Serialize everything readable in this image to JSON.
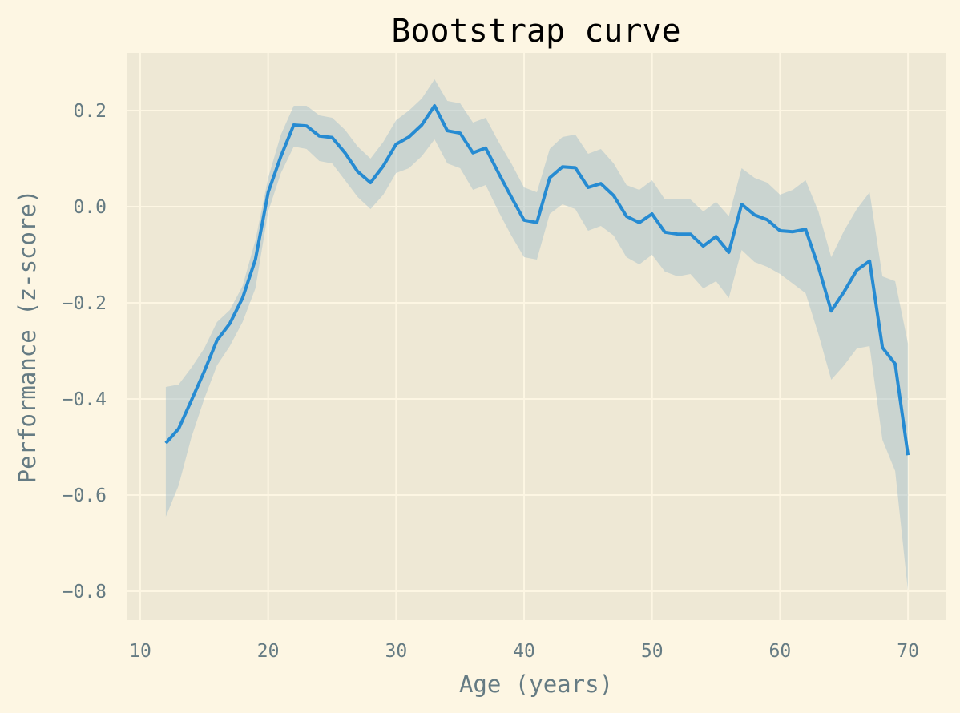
{
  "chart_data": {
    "type": "line",
    "title": "Bootstrap curve",
    "xlabel": "Age (years)",
    "ylabel": "Performance (z-score)",
    "xlim": [
      9,
      73
    ],
    "ylim": [
      -0.86,
      0.32
    ],
    "xticks": [
      10,
      20,
      30,
      40,
      50,
      60,
      70
    ],
    "yticks": [
      0.2,
      0.0,
      -0.2,
      -0.4,
      -0.6,
      -0.8
    ],
    "xtick_labels": [
      "10",
      "20",
      "30",
      "40",
      "50",
      "60",
      "70"
    ],
    "ytick_labels": [
      "0.2",
      "0.0",
      "−0.2",
      "−0.4",
      "−0.6",
      "−0.8"
    ],
    "grid": true,
    "colors": {
      "figure_bg": "#fdf6e3",
      "axes_bg": "#eee8d5",
      "grid": "#fdf6e3",
      "line": "#268bd2",
      "band": "#93b6c8",
      "title": "#000000",
      "labels": "#657b83"
    },
    "series": [
      {
        "x": [
          12,
          13,
          14,
          15,
          16,
          17,
          18,
          19,
          20,
          21,
          22,
          23,
          24,
          25,
          26,
          27,
          28,
          29,
          30,
          31,
          32,
          33,
          34,
          35,
          36,
          37,
          38,
          39,
          40,
          41,
          42,
          43,
          44,
          45,
          46,
          47,
          48,
          49,
          50,
          51,
          52,
          53,
          54,
          55,
          56,
          57,
          58,
          59,
          60,
          61,
          62,
          63,
          64,
          65,
          66,
          67,
          68,
          69,
          70
        ],
        "y": [
          -0.492,
          -0.462,
          -0.403,
          -0.343,
          -0.278,
          -0.243,
          -0.19,
          -0.11,
          0.03,
          0.105,
          0.17,
          0.168,
          0.147,
          0.144,
          0.112,
          0.073,
          0.05,
          0.085,
          0.13,
          0.145,
          0.17,
          0.21,
          0.158,
          0.153,
          0.112,
          0.122,
          0.07,
          0.02,
          -0.028,
          -0.033,
          0.06,
          0.083,
          0.081,
          0.04,
          0.048,
          0.023,
          -0.02,
          -0.033,
          -0.015,
          -0.053,
          -0.057,
          -0.057,
          -0.082,
          -0.062,
          -0.095,
          0.005,
          -0.017,
          -0.027,
          -0.05,
          -0.052,
          -0.047,
          -0.125,
          -0.217,
          -0.177,
          -0.132,
          -0.113,
          -0.293,
          -0.327,
          -0.517
        ],
        "lower": [
          -0.645,
          -0.58,
          -0.48,
          -0.4,
          -0.33,
          -0.29,
          -0.24,
          -0.17,
          -0.01,
          0.07,
          0.125,
          0.12,
          0.095,
          0.09,
          0.055,
          0.02,
          -0.005,
          0.025,
          0.07,
          0.08,
          0.105,
          0.14,
          0.09,
          0.08,
          0.035,
          0.045,
          -0.01,
          -0.06,
          -0.105,
          -0.11,
          -0.015,
          0.005,
          -0.005,
          -0.05,
          -0.04,
          -0.06,
          -0.105,
          -0.12,
          -0.1,
          -0.135,
          -0.145,
          -0.14,
          -0.17,
          -0.155,
          -0.19,
          -0.09,
          -0.115,
          -0.125,
          -0.14,
          -0.16,
          -0.18,
          -0.265,
          -0.36,
          -0.33,
          -0.295,
          -0.29,
          -0.485,
          -0.55,
          -0.8
        ],
        "upper": [
          -0.375,
          -0.37,
          -0.335,
          -0.295,
          -0.24,
          -0.215,
          -0.165,
          -0.07,
          0.06,
          0.15,
          0.21,
          0.21,
          0.19,
          0.185,
          0.16,
          0.125,
          0.1,
          0.135,
          0.18,
          0.2,
          0.225,
          0.265,
          0.22,
          0.215,
          0.175,
          0.185,
          0.135,
          0.09,
          0.04,
          0.03,
          0.12,
          0.145,
          0.15,
          0.11,
          0.12,
          0.09,
          0.045,
          0.035,
          0.055,
          0.015,
          0.015,
          0.015,
          -0.01,
          0.01,
          -0.02,
          0.08,
          0.06,
          0.05,
          0.025,
          0.035,
          0.055,
          -0.01,
          -0.105,
          -0.05,
          -0.005,
          0.03,
          -0.145,
          -0.155,
          -0.285
        ]
      }
    ]
  }
}
